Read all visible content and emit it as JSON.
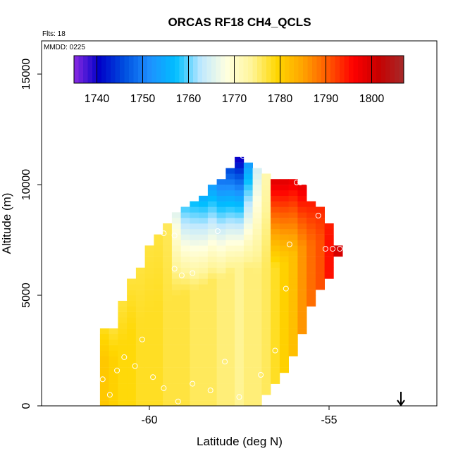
{
  "chart_data": {
    "type": "heatmap",
    "title": "ORCAS RF18 CH4_QCLS",
    "subtitle": "Flts: 18",
    "inset_label": "MMDD: 0225",
    "xlabel": "Latitude (deg N)",
    "ylabel": "Altitude (m)",
    "xlim": [
      -63.0,
      -52.0
    ],
    "ylim": [
      0,
      16500
    ],
    "x_ticks": [
      -60,
      -55
    ],
    "x_tick_labels": [
      "-60",
      "-55"
    ],
    "y_ticks": [
      0,
      5000,
      10000,
      15000
    ],
    "y_tick_labels": [
      "0",
      "5000",
      "10000",
      "15000"
    ],
    "grid": false,
    "cell_size": {
      "lat": 0.25,
      "alt": 250
    },
    "colorbar": {
      "min": 1735,
      "max": 1807,
      "ticks": [
        1740,
        1750,
        1760,
        1770,
        1780,
        1790,
        1800
      ],
      "tick_labels": [
        "1740",
        "1750",
        "1760",
        "1770",
        "1780",
        "1790",
        "1800"
      ],
      "colors": [
        "#8a2be2",
        "#0000c8",
        "#0050e0",
        "#1e90ff",
        "#00bfff",
        "#bfe8ff",
        "#ffffe0",
        "#fff59a",
        "#ffd700",
        "#ffa500",
        "#ff5a00",
        "#ff0000",
        "#c80000",
        "#a52a2a"
      ]
    },
    "columns": [
      {
        "lat": -61.25,
        "alt_min": 0,
        "alt_max": 3500,
        "ch4_bottom": 1781,
        "ch4_top": 1778
      },
      {
        "lat": -61.0,
        "alt_min": 0,
        "alt_max": 3500,
        "ch4_bottom": 1780,
        "ch4_top": 1777
      },
      {
        "lat": -60.75,
        "alt_min": 0,
        "alt_max": 4750,
        "ch4_bottom": 1779,
        "ch4_top": 1777
      },
      {
        "lat": -60.5,
        "alt_min": 0,
        "alt_max": 5750,
        "ch4_bottom": 1779,
        "ch4_top": 1777
      },
      {
        "lat": -60.25,
        "alt_min": 0,
        "alt_max": 6250,
        "ch4_bottom": 1778,
        "ch4_top": 1777
      },
      {
        "lat": -60.0,
        "alt_min": 0,
        "alt_max": 7250,
        "ch4_bottom": 1778,
        "ch4_top": 1777
      },
      {
        "lat": -59.75,
        "alt_min": 0,
        "alt_max": 7750,
        "ch4_bottom": 1778,
        "ch4_top": 1777
      },
      {
        "lat": -59.5,
        "alt_min": 0,
        "alt_max": 8250,
        "ch4_bottom": 1777,
        "ch4_top": 1776
      },
      {
        "lat": -59.25,
        "alt_min": 0,
        "alt_max": 8750,
        "ch4_bottom": 1777,
        "ch4_top": 1765
      },
      {
        "lat": -59.0,
        "alt_min": 0,
        "alt_max": 9000,
        "ch4_bottom": 1777,
        "ch4_top": 1758
      },
      {
        "lat": -58.75,
        "alt_min": 0,
        "alt_max": 9250,
        "ch4_bottom": 1776,
        "ch4_top": 1756
      },
      {
        "lat": -58.5,
        "alt_min": 0,
        "alt_max": 9500,
        "ch4_bottom": 1776,
        "ch4_top": 1754
      },
      {
        "lat": -58.25,
        "alt_min": 0,
        "alt_max": 10000,
        "ch4_bottom": 1776,
        "ch4_top": 1752
      },
      {
        "lat": -58.0,
        "alt_min": 0,
        "alt_max": 10250,
        "ch4_bottom": 1775,
        "ch4_top": 1748
      },
      {
        "lat": -57.75,
        "alt_min": 0,
        "alt_max": 10750,
        "ch4_bottom": 1775,
        "ch4_top": 1744
      },
      {
        "lat": -57.5,
        "alt_min": 0,
        "alt_max": 11250,
        "ch4_bottom": 1774,
        "ch4_top": 1738
      },
      {
        "lat": -57.25,
        "alt_min": 0,
        "alt_max": 11000,
        "ch4_bottom": 1775,
        "ch4_top": 1752
      },
      {
        "lat": -57.0,
        "alt_min": 0,
        "alt_max": 10750,
        "ch4_bottom": 1775,
        "ch4_top": 1764
      },
      {
        "lat": -56.75,
        "alt_min": 500,
        "alt_max": 10500,
        "ch4_bottom": 1776,
        "ch4_top": 1772
      },
      {
        "lat": -56.5,
        "alt_min": 1000,
        "alt_max": 10250,
        "ch4_bottom": 1778,
        "ch4_top": 1800
      },
      {
        "lat": -56.25,
        "alt_min": 1500,
        "alt_max": 10250,
        "ch4_bottom": 1780,
        "ch4_top": 1800
      },
      {
        "lat": -56.0,
        "alt_min": 2250,
        "alt_max": 10250,
        "ch4_bottom": 1782,
        "ch4_top": 1799
      },
      {
        "lat": -55.75,
        "alt_min": 3250,
        "alt_max": 10000,
        "ch4_bottom": 1786,
        "ch4_top": 1799
      },
      {
        "lat": -55.5,
        "alt_min": 4500,
        "alt_max": 9250,
        "ch4_bottom": 1789,
        "ch4_top": 1795
      },
      {
        "lat": -55.25,
        "alt_min": 5250,
        "alt_max": 9000,
        "ch4_bottom": 1791,
        "ch4_top": 1794
      },
      {
        "lat": -55.0,
        "alt_min": 5750,
        "alt_max": 8250,
        "ch4_bottom": 1795,
        "ch4_top": 1794
      },
      {
        "lat": -54.75,
        "alt_min": 6750,
        "alt_max": 7250,
        "ch4_bottom": 1800,
        "ch4_top": 1800
      }
    ],
    "sample_points": [
      {
        "lat": -61.3,
        "alt": 1200
      },
      {
        "lat": -61.1,
        "alt": 500
      },
      {
        "lat": -60.9,
        "alt": 1600
      },
      {
        "lat": -60.7,
        "alt": 2200
      },
      {
        "lat": -60.4,
        "alt": 1800
      },
      {
        "lat": -60.2,
        "alt": 3000
      },
      {
        "lat": -59.9,
        "alt": 1300
      },
      {
        "lat": -59.6,
        "alt": 800
      },
      {
        "lat": -59.2,
        "alt": 200
      },
      {
        "lat": -58.8,
        "alt": 1000
      },
      {
        "lat": -58.3,
        "alt": 700
      },
      {
        "lat": -57.9,
        "alt": 2000
      },
      {
        "lat": -57.5,
        "alt": 400
      },
      {
        "lat": -56.9,
        "alt": 1400
      },
      {
        "lat": -56.5,
        "alt": 2500
      },
      {
        "lat": -59.3,
        "alt": 6200
      },
      {
        "lat": -59.1,
        "alt": 5900
      },
      {
        "lat": -58.8,
        "alt": 6000
      },
      {
        "lat": -59.6,
        "alt": 7800
      },
      {
        "lat": -59.3,
        "alt": 7700
      },
      {
        "lat": -58.1,
        "alt": 7900
      },
      {
        "lat": -56.2,
        "alt": 5300
      },
      {
        "lat": -56.1,
        "alt": 7300
      },
      {
        "lat": -57.4,
        "alt": 11300
      },
      {
        "lat": -55.9,
        "alt": 10100
      },
      {
        "lat": -55.8,
        "alt": 10100
      },
      {
        "lat": -55.6,
        "alt": 10100
      },
      {
        "lat": -55.4,
        "alt": 10100
      },
      {
        "lat": -55.3,
        "alt": 8600
      },
      {
        "lat": -55.1,
        "alt": 7100
      },
      {
        "lat": -54.9,
        "alt": 7100
      },
      {
        "lat": -54.7,
        "alt": 7100
      }
    ],
    "marker": {
      "lat": -53.0,
      "alt": 0,
      "symbol": "down-arrow"
    }
  }
}
